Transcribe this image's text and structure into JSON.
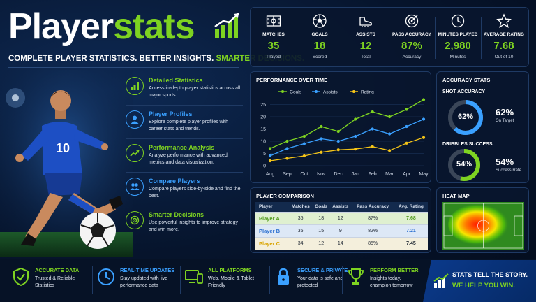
{
  "brand": {
    "word1": "Player",
    "word2": "stats"
  },
  "tagline": {
    "part1": "COMPLETE PLAYER STATISTICS. BETTER INSIGHTS.",
    "part2": "SMARTER DECISIONS."
  },
  "player": {
    "jersey_number": "10"
  },
  "features": [
    {
      "icon": "bar-chart-icon",
      "title": "Detailed Statistics",
      "desc": "Access in-depth player statistics across all major sports."
    },
    {
      "icon": "user-icon",
      "title": "Player Profiles",
      "desc": "Explore complete player profiles with career stats and trends."
    },
    {
      "icon": "trend-icon",
      "title": "Performance Analysis",
      "desc": "Analyze performance with advanced metrics and data visualization."
    },
    {
      "icon": "users-icon",
      "title": "Compare Players",
      "desc": "Compare players side-by-side and find the best."
    },
    {
      "icon": "target-icon",
      "title": "Smarter Decisions",
      "desc": "Use powerful insights to improve strategy and win more."
    }
  ],
  "stats": [
    {
      "icon": "pitch-icon",
      "label": "MATCHES",
      "value": "35",
      "sub": "Played"
    },
    {
      "icon": "ball-icon",
      "label": "GOALS",
      "value": "18",
      "sub": "Scored"
    },
    {
      "icon": "boot-icon",
      "label": "ASSISTS",
      "value": "12",
      "sub": "Total"
    },
    {
      "icon": "target-icon",
      "label": "PASS ACCURACY",
      "value": "87%",
      "sub": "Accuracy"
    },
    {
      "icon": "clock-icon",
      "label": "MINUTES PLAYED",
      "value": "2,980",
      "sub": "Minutes"
    },
    {
      "icon": "star-icon",
      "label": "AVERAGE RATING",
      "value": "7.68",
      "sub": "Out of 10"
    }
  ],
  "performance": {
    "title": "PERFORMANCE OVER TIME"
  },
  "chart_data": {
    "type": "line",
    "title": "PERFORMANCE OVER TIME",
    "categories": [
      "Aug",
      "Sep",
      "Oct",
      "Nov",
      "Dec",
      "Jan",
      "Feb",
      "Mar",
      "Apr",
      "May"
    ],
    "yticks": [
      "0",
      "5",
      "10",
      "15",
      "20",
      "25"
    ],
    "ylim": [
      0,
      28
    ],
    "grid": true,
    "legend": "top",
    "series": [
      {
        "name": "Goals",
        "color": "#7ed321",
        "values": [
          7,
          10,
          12,
          16,
          14,
          19,
          22,
          20,
          23,
          27
        ]
      },
      {
        "name": "Assists",
        "color": "#3aa0ff",
        "values": [
          4,
          7,
          9,
          11,
          10,
          12,
          15,
          13,
          16,
          19
        ]
      },
      {
        "name": "Rating",
        "color": "#f5c518",
        "values": [
          2,
          3,
          4,
          5.5,
          6.5,
          6.8,
          7.8,
          6.2,
          9.2,
          11.5
        ]
      }
    ]
  },
  "comparison": {
    "title": "PLAYER COMPARISON",
    "headers": [
      "Player",
      "Matches",
      "Goals",
      "Assists",
      "Pass Accuracy",
      "Avg. Rating"
    ],
    "rows": [
      {
        "player": "Player A",
        "color": "#4f9a1a",
        "matches": "35",
        "goals": "18",
        "assists": "12",
        "pass": "87%",
        "rating": "7.68",
        "rating_color": "#4f9a1a"
      },
      {
        "player": "Player B",
        "color": "#2a6fd0",
        "matches": "35",
        "goals": "15",
        "assists": "9",
        "pass": "82%",
        "rating": "7.21",
        "rating_color": "#2a6fd0"
      },
      {
        "player": "Player C",
        "color": "#d9a400",
        "matches": "34",
        "goals": "12",
        "assists": "14",
        "pass": "85%",
        "rating": "7.45",
        "rating_color": "#1b2430"
      }
    ]
  },
  "accuracy": {
    "title": "ACCURACY STATS",
    "shot": {
      "label": "SHOT ACCURACY",
      "value": "62%",
      "ring": "62%",
      "fraction": 0.62,
      "sub": "On Target",
      "color": "#3aa0ff"
    },
    "dribble": {
      "label": "DRIBBLES SUCCESS",
      "value": "54%",
      "ring": "54%",
      "fraction": 0.54,
      "sub": "Success Rate",
      "color": "#7ed321"
    }
  },
  "heatmap": {
    "title": "HEAT MAP"
  },
  "bottom": [
    {
      "icon": "shield-check-icon",
      "title": "ACCURATE DATA",
      "color": "#7ed321",
      "desc": "Trusted & Reliable Statistics"
    },
    {
      "icon": "clock-icon",
      "title": "REAL-TIME UPDATES",
      "color": "#3aa0ff",
      "desc": "Stay updated with live performance data"
    },
    {
      "icon": "devices-icon",
      "title": "ALL PLATFORMS",
      "color": "#7ed321",
      "desc": "Web, Mobile & Tablet Friendly"
    },
    {
      "icon": "lock-icon",
      "title": "SECURE & PRIVATE",
      "color": "#3aa0ff",
      "desc": "Your data is safe and protected"
    },
    {
      "icon": "trophy-icon",
      "title": "PERFORM BETTER",
      "color": "#7ed321",
      "desc": "Insights today, champion tomorrow"
    }
  ],
  "cta": {
    "line1": "STATS TELL THE STORY.",
    "line2": "WE HELP YOU WIN."
  }
}
